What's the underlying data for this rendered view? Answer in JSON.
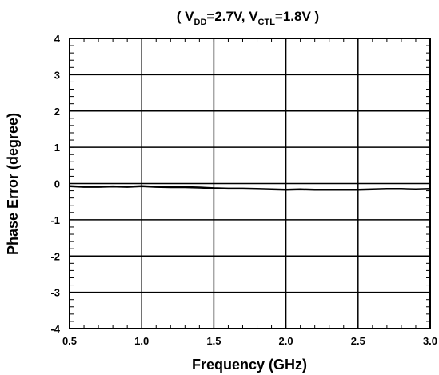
{
  "chart_data": {
    "type": "line",
    "title": {
      "open": "( V",
      "sub1": "DD",
      "mid": "=2.7V, V",
      "sub2": "CTL",
      "close": "=1.8V )"
    },
    "xlabel": "Frequency (GHz)",
    "ylabel": "Phase Error (degree)",
    "xlim": [
      0.5,
      3.0
    ],
    "ylim": [
      -4,
      4
    ],
    "x_ticks": [
      0.5,
      1.0,
      1.5,
      2.0,
      2.5,
      3.0
    ],
    "x_tick_labels": [
      "0.5",
      "1.0",
      "1.5",
      "2.0",
      "2.5",
      "3.0"
    ],
    "y_ticks": [
      4,
      3,
      2,
      1,
      0,
      -1,
      -2,
      -3,
      -4
    ],
    "y_tick_labels": [
      "4",
      "3",
      "2",
      "1",
      "0",
      "-1",
      "-2",
      "-3",
      "-4"
    ],
    "grid": true,
    "series": [
      {
        "color": "#000000",
        "x": [
          0.5,
          0.6,
          0.7,
          0.8,
          0.9,
          1.0,
          1.1,
          1.2,
          1.3,
          1.4,
          1.5,
          1.6,
          1.7,
          1.8,
          1.9,
          2.0,
          2.1,
          2.2,
          2.3,
          2.4,
          2.5,
          2.6,
          2.7,
          2.8,
          2.9,
          3.0
        ],
        "y": [
          -0.07,
          -0.09,
          -0.09,
          -0.08,
          -0.09,
          -0.07,
          -0.09,
          -0.1,
          -0.1,
          -0.11,
          -0.13,
          -0.14,
          -0.14,
          -0.15,
          -0.16,
          -0.17,
          -0.16,
          -0.17,
          -0.17,
          -0.17,
          -0.17,
          -0.16,
          -0.15,
          -0.15,
          -0.16,
          -0.15
        ]
      }
    ]
  }
}
